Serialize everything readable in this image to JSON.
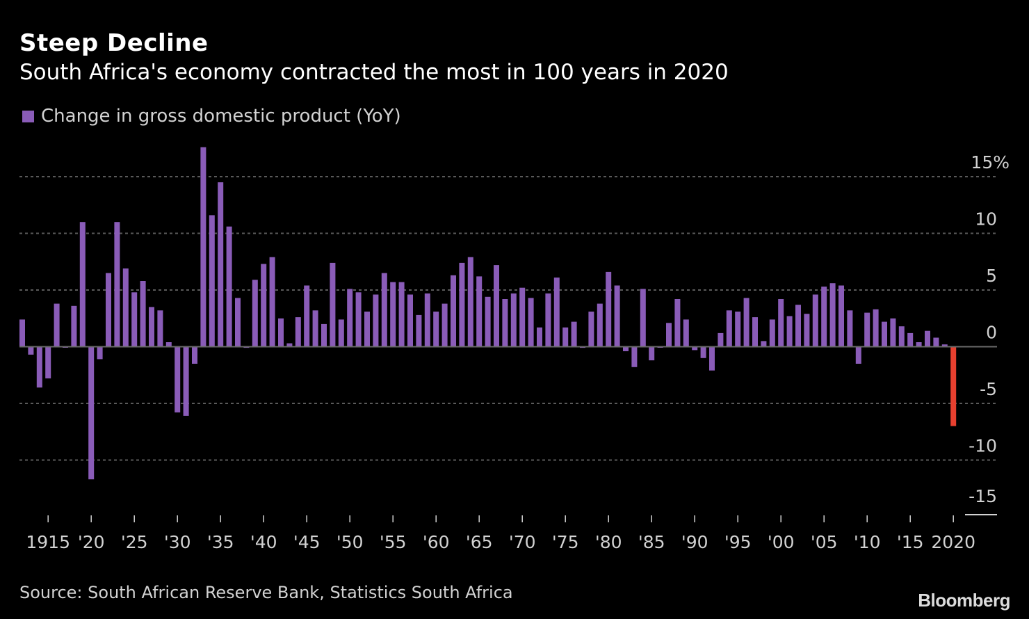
{
  "header": {
    "title": "Steep Decline",
    "subtitle": "South Africa's economy contracted the most in 100 years in 2020"
  },
  "legend": {
    "label": "Change in gross domestic product (YoY)"
  },
  "footer": {
    "source": "Source: South African Reserve Bank, Statistics South Africa",
    "brand": "Bloomberg"
  },
  "colors": {
    "bar": "#8a5cb8",
    "highlight": "#e8402f",
    "background": "#000000",
    "grid": "#5a5a5a",
    "text": "#d2d2d2"
  },
  "chart_data": {
    "type": "bar",
    "title": "Steep Decline",
    "subtitle": "South Africa's economy contracted the most in 100 years in 2020",
    "xlabel": "",
    "ylabel": "Change in gross domestic product (YoY)",
    "ylim": [
      -15,
      15
    ],
    "grid": true,
    "legend_position": "top-left",
    "y_ticks": [
      15,
      10,
      5,
      0,
      -5,
      -10,
      -15
    ],
    "y_tick_labels": [
      "15%",
      "10",
      "5",
      "0",
      "-5",
      "-10",
      "-15"
    ],
    "x_ticks": [
      1915,
      1920,
      1925,
      1930,
      1935,
      1940,
      1945,
      1950,
      1955,
      1960,
      1965,
      1970,
      1975,
      1980,
      1985,
      1990,
      1995,
      2000,
      2005,
      2010,
      2015,
      2020
    ],
    "x_tick_labels": [
      "1915",
      "'20",
      "'25",
      "'30",
      "'35",
      "'40",
      "'45",
      "'50",
      "'55",
      "'60",
      "'65",
      "'70",
      "'75",
      "'80",
      "'85",
      "'90",
      "'95",
      "'00",
      "'05",
      "'10",
      "'15",
      "2020"
    ],
    "highlight_year": 2020,
    "series": [
      {
        "name": "Change in gross domestic product (YoY)",
        "start_year": 1912,
        "values": [
          2.4,
          -0.7,
          -3.6,
          -2.8,
          3.8,
          0.0,
          3.6,
          11.0,
          -11.7,
          -1.1,
          6.5,
          11.0,
          6.9,
          4.8,
          5.8,
          3.5,
          3.2,
          0.4,
          -5.8,
          -6.1,
          -1.5,
          17.6,
          11.6,
          14.5,
          10.6,
          4.3,
          -0.1,
          5.9,
          7.3,
          7.9,
          2.5,
          0.3,
          2.6,
          5.4,
          3.2,
          2.0,
          7.4,
          2.4,
          5.1,
          4.8,
          3.1,
          4.6,
          6.5,
          5.7,
          5.7,
          4.6,
          2.8,
          4.7,
          3.1,
          3.8,
          6.3,
          7.4,
          7.9,
          6.2,
          4.4,
          7.2,
          4.2,
          4.7,
          5.2,
          4.3,
          1.7,
          4.7,
          6.1,
          1.7,
          2.2,
          -0.1,
          3.1,
          3.8,
          6.6,
          5.4,
          -0.4,
          -1.8,
          5.1,
          -1.2,
          0.0,
          2.1,
          4.2,
          2.4,
          -0.3,
          -1.0,
          -2.1,
          1.2,
          3.2,
          3.1,
          4.3,
          2.6,
          0.5,
          2.4,
          4.2,
          2.7,
          3.7,
          2.9,
          4.6,
          5.3,
          5.6,
          5.4,
          3.2,
          -1.5,
          3.0,
          3.3,
          2.2,
          2.5,
          1.8,
          1.2,
          0.4,
          1.4,
          0.8,
          0.2,
          -7.0
        ]
      }
    ]
  }
}
